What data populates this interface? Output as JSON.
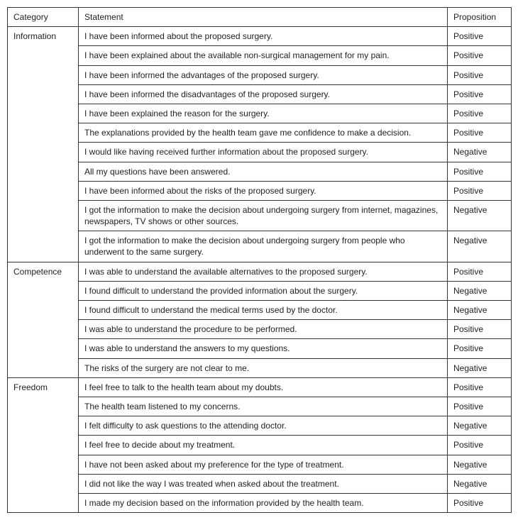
{
  "headers": {
    "category": "Category",
    "statement": "Statement",
    "proposition": "Proposition"
  },
  "rows": [
    {
      "category": "Information",
      "first": true,
      "statement": "I have been informed about the proposed surgery.",
      "proposition": "Positive"
    },
    {
      "category": "",
      "first": false,
      "statement": "I have been explained about the available non-surgical management for my pain.",
      "proposition": "Positive"
    },
    {
      "category": "",
      "first": false,
      "statement": "I have been informed the advantages of the proposed surgery.",
      "proposition": "Positive"
    },
    {
      "category": "",
      "first": false,
      "statement": "I have been informed the disadvantages of the proposed surgery.",
      "proposition": "Positive"
    },
    {
      "category": "",
      "first": false,
      "statement": "I have been explained the reason for the surgery.",
      "proposition": "Positive"
    },
    {
      "category": "",
      "first": false,
      "statement": "The explanations provided by the health team gave me confidence to make a decision.",
      "proposition": "Positive"
    },
    {
      "category": "",
      "first": false,
      "statement": "I would like having received further information about the proposed surgery.",
      "proposition": "Negative"
    },
    {
      "category": "",
      "first": false,
      "statement": "All my questions have been answered.",
      "proposition": "Positive"
    },
    {
      "category": "",
      "first": false,
      "statement": "I have been informed about the risks of the proposed surgery.",
      "proposition": "Positive"
    },
    {
      "category": "",
      "first": false,
      "statement": "I got the information to make the decision about undergoing surgery from internet, magazines, newspapers, TV shows or other sources.",
      "proposition": "Negative"
    },
    {
      "category": "",
      "first": false,
      "statement": "I got the information to make the decision about undergoing surgery from people who underwent to the same surgery.",
      "proposition": "Negative"
    },
    {
      "category": "Competence",
      "first": true,
      "statement": "I was able to understand the available alternatives to the proposed surgery.",
      "proposition": "Positive"
    },
    {
      "category": "",
      "first": false,
      "statement": "I found difficult to understand the provided information about the surgery.",
      "proposition": "Negative"
    },
    {
      "category": "",
      "first": false,
      "statement": "I found difficult to understand the medical terms used by the doctor.",
      "proposition": "Negative"
    },
    {
      "category": "",
      "first": false,
      "statement": "I was able to understand the procedure to be performed.",
      "proposition": "Positive"
    },
    {
      "category": "",
      "first": false,
      "statement": "I was able to understand the answers to my questions.",
      "proposition": "Positive"
    },
    {
      "category": "",
      "first": false,
      "statement": "The risks of the surgery are not clear to me.",
      "proposition": "Negative"
    },
    {
      "category": "Freedom",
      "first": true,
      "statement": "I feel free to talk to the health team about my doubts.",
      "proposition": "Positive"
    },
    {
      "category": "",
      "first": false,
      "statement": "The health team listened to my concerns.",
      "proposition": "Positive"
    },
    {
      "category": "",
      "first": false,
      "statement": "I felt difficulty to ask questions to the attending doctor.",
      "proposition": "Negative"
    },
    {
      "category": "",
      "first": false,
      "statement": "I feel free to decide about my treatment.",
      "proposition": "Positive"
    },
    {
      "category": "",
      "first": false,
      "statement": "I have not been asked about my preference for the type of treatment.",
      "proposition": "Negative"
    },
    {
      "category": "",
      "first": false,
      "statement": "I did not like the way I was treated when asked about the treatment.",
      "proposition": "Negative"
    },
    {
      "category": "",
      "first": false,
      "statement": "I made my decision based on the information provided by the health team.",
      "proposition": "Positive"
    }
  ]
}
